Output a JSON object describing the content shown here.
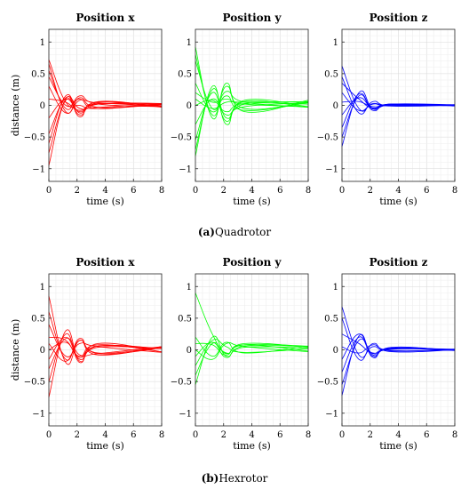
{
  "figure": {
    "captions": [
      {
        "label": "(a)",
        "text": "Quadrotor"
      },
      {
        "label": "(b)",
        "text": "Hexrotor"
      }
    ]
  },
  "chart_data": [
    {
      "type": "line",
      "row": 0,
      "col": 0,
      "title": "Position x",
      "xlabel": "time (s)",
      "ylabel": "distance (m)",
      "color": "#ff0000",
      "xlim": [
        0,
        8
      ],
      "ylim": [
        -1.2,
        1.2
      ],
      "xticks": [
        0,
        2,
        4,
        6,
        8
      ],
      "yticks": [
        -1,
        -0.5,
        0,
        0.5,
        1
      ],
      "grid": true,
      "series": [
        {
          "values": [
            0.72,
            0.05,
            0.0,
            -0.05,
            0.02
          ]
        },
        {
          "values": [
            0.65,
            -0.1,
            0.12,
            -0.03,
            0.01
          ]
        },
        {
          "values": [
            0.55,
            -0.05,
            0.15,
            0.02,
            -0.02
          ]
        },
        {
          "values": [
            0.45,
            0.0,
            0.1,
            -0.05,
            0.03
          ]
        },
        {
          "values": [
            0.3,
            -0.12,
            0.08,
            0.04,
            -0.01
          ]
        },
        {
          "values": [
            0.1,
            0.05,
            -0.08,
            0.02,
            0.02
          ]
        },
        {
          "values": [
            -0.2,
            0.1,
            -0.1,
            0.03,
            -0.02
          ]
        },
        {
          "values": [
            -0.45,
            0.12,
            -0.05,
            -0.03,
            0.02
          ]
        },
        {
          "values": [
            -0.6,
            0.15,
            -0.12,
            0.05,
            -0.01
          ]
        },
        {
          "values": [
            -0.75,
            0.08,
            -0.15,
            0.02,
            0.03
          ]
        },
        {
          "values": [
            -0.95,
            0.1,
            -0.18,
            0.06,
            -0.03
          ]
        }
      ]
    },
    {
      "type": "line",
      "row": 0,
      "col": 1,
      "title": "Position y",
      "xlabel": "time (s)",
      "ylabel": "",
      "color": "#00ff00",
      "xlim": [
        0,
        8
      ],
      "ylim": [
        -1.2,
        1.2
      ],
      "xticks": [
        0,
        2,
        4,
        6,
        8
      ],
      "yticks": [
        -1,
        -0.5,
        0,
        0.5,
        1
      ],
      "grid": true,
      "series": [
        {
          "values": [
            0.92,
            -0.2,
            0.35,
            -0.1,
            0.08
          ]
        },
        {
          "values": [
            0.8,
            -0.15,
            0.3,
            -0.05,
            0.05
          ]
        },
        {
          "values": [
            0.7,
            -0.05,
            0.22,
            0.05,
            -0.03
          ]
        },
        {
          "values": [
            0.35,
            -0.1,
            0.15,
            -0.08,
            0.04
          ]
        },
        {
          "values": [
            0.2,
            0.05,
            0.1,
            0.02,
            -0.02
          ]
        },
        {
          "values": [
            0.1,
            -0.05,
            0.05,
            0.05,
            0.06
          ]
        },
        {
          "values": [
            0.0,
            0.08,
            -0.1,
            0.03,
            0.02
          ]
        },
        {
          "values": [
            -0.3,
            0.1,
            -0.15,
            -0.02,
            0.04
          ]
        },
        {
          "values": [
            -0.55,
            0.2,
            -0.25,
            0.06,
            -0.03
          ]
        },
        {
          "values": [
            -0.7,
            0.25,
            -0.2,
            0.02,
            0.05
          ]
        },
        {
          "values": [
            -0.8,
            0.3,
            -0.3,
            0.08,
            -0.02
          ]
        }
      ]
    },
    {
      "type": "line",
      "row": 0,
      "col": 2,
      "title": "Position z",
      "xlabel": "time (s)",
      "ylabel": "",
      "color": "#0000ff",
      "xlim": [
        0,
        8
      ],
      "ylim": [
        -1.2,
        1.2
      ],
      "xticks": [
        0,
        2,
        4,
        6,
        8
      ],
      "yticks": [
        -1,
        -0.5,
        0,
        0.5,
        1
      ],
      "grid": true,
      "series": [
        {
          "values": [
            0.62,
            -0.05,
            0.03,
            0.0,
            0.01
          ]
        },
        {
          "values": [
            0.45,
            -0.12,
            0.06,
            -0.01,
            0.0
          ]
        },
        {
          "values": [
            0.35,
            0.1,
            -0.04,
            0.02,
            0.0
          ]
        },
        {
          "values": [
            0.2,
            -0.08,
            0.02,
            -0.01,
            0.01
          ]
        },
        {
          "values": [
            0.05,
            0.06,
            -0.02,
            0.0,
            0.0
          ]
        },
        {
          "values": [
            -0.15,
            0.12,
            -0.05,
            0.01,
            0.0
          ]
        },
        {
          "values": [
            -0.35,
            0.18,
            -0.06,
            0.02,
            -0.01
          ]
        },
        {
          "values": [
            -0.5,
            0.15,
            -0.08,
            0.01,
            0.0
          ]
        },
        {
          "values": [
            -0.65,
            0.2,
            -0.05,
            0.02,
            0.01
          ]
        }
      ]
    },
    {
      "type": "line",
      "row": 1,
      "col": 0,
      "title": "Position x",
      "xlabel": "time (s)",
      "ylabel": "distance (m)",
      "color": "#ff0000",
      "xlim": [
        0,
        8
      ],
      "ylim": [
        -1.2,
        1.2
      ],
      "xticks": [
        0,
        2,
        4,
        6,
        8
      ],
      "yticks": [
        -1,
        -0.5,
        0,
        0.5,
        1
      ],
      "grid": true,
      "series": [
        {
          "values": [
            0.85,
            -0.2,
            0.15,
            -0.08,
            0.05
          ]
        },
        {
          "values": [
            0.6,
            -0.15,
            0.18,
            -0.06,
            0.03
          ]
        },
        {
          "values": [
            0.4,
            -0.1,
            0.1,
            0.05,
            -0.04
          ]
        },
        {
          "values": [
            0.2,
            0.15,
            -0.12,
            0.06,
            0.02
          ]
        },
        {
          "values": [
            0.1,
            -0.18,
            0.15,
            -0.05,
            0.04
          ]
        },
        {
          "values": [
            0.0,
            0.12,
            -0.1,
            0.08,
            -0.03
          ]
        },
        {
          "values": [
            -0.15,
            0.2,
            -0.15,
            0.04,
            0.02
          ]
        },
        {
          "values": [
            -0.3,
            0.18,
            -0.08,
            -0.06,
            0.05
          ]
        },
        {
          "values": [
            -0.5,
            0.25,
            -0.2,
            0.1,
            -0.03
          ]
        },
        {
          "values": [
            -0.75,
            0.3,
            -0.18,
            0.06,
            0.02
          ]
        }
      ]
    },
    {
      "type": "line",
      "row": 1,
      "col": 1,
      "title": "Position y",
      "xlabel": "time (s)",
      "ylabel": "",
      "color": "#00ff00",
      "xlim": [
        0,
        8
      ],
      "ylim": [
        -1.2,
        1.2
      ],
      "xticks": [
        0,
        2,
        4,
        6,
        8
      ],
      "yticks": [
        -1,
        -0.5,
        0,
        0.5,
        1
      ],
      "grid": true,
      "series": [
        {
          "values": [
            0.9,
            0.25,
            -0.05,
            0.08,
            -0.02
          ]
        },
        {
          "values": [
            0.2,
            -0.1,
            0.12,
            -0.05,
            0.06
          ]
        },
        {
          "values": [
            0.1,
            0.08,
            -0.08,
            0.1,
            0.04
          ]
        },
        {
          "values": [
            0.0,
            -0.15,
            0.1,
            0.05,
            -0.03
          ]
        },
        {
          "values": [
            -0.1,
            0.12,
            -0.12,
            0.06,
            0.05
          ]
        },
        {
          "values": [
            -0.25,
            0.15,
            0.05,
            -0.04,
            0.02
          ]
        },
        {
          "values": [
            -0.4,
            0.1,
            -0.06,
            0.08,
            0.06
          ]
        },
        {
          "values": [
            -0.55,
            0.2,
            -0.1,
            0.04,
            0.03
          ]
        }
      ]
    },
    {
      "type": "line",
      "row": 1,
      "col": 2,
      "title": "Position z",
      "xlabel": "time (s)",
      "ylabel": "",
      "color": "#0000ff",
      "xlim": [
        0,
        8
      ],
      "ylim": [
        -1.2,
        1.2
      ],
      "xticks": [
        0,
        2,
        4,
        6,
        8
      ],
      "yticks": [
        -1,
        -0.5,
        0,
        0.5,
        1
      ],
      "grid": true,
      "series": [
        {
          "values": [
            0.68,
            -0.08,
            0.05,
            -0.02,
            0.01
          ]
        },
        {
          "values": [
            0.5,
            -0.15,
            0.1,
            -0.03,
            0.0
          ]
        },
        {
          "values": [
            0.25,
            0.1,
            -0.05,
            0.02,
            0.01
          ]
        },
        {
          "values": [
            0.05,
            -0.05,
            0.08,
            -0.01,
            0.0
          ]
        },
        {
          "values": [
            -0.15,
            0.25,
            -0.08,
            0.02,
            -0.01
          ]
        },
        {
          "values": [
            -0.35,
            0.2,
            -0.1,
            0.03,
            0.0
          ]
        },
        {
          "values": [
            -0.55,
            0.15,
            -0.06,
            0.01,
            0.01
          ]
        },
        {
          "values": [
            -0.72,
            0.22,
            -0.12,
            0.04,
            -0.01
          ]
        }
      ]
    }
  ]
}
